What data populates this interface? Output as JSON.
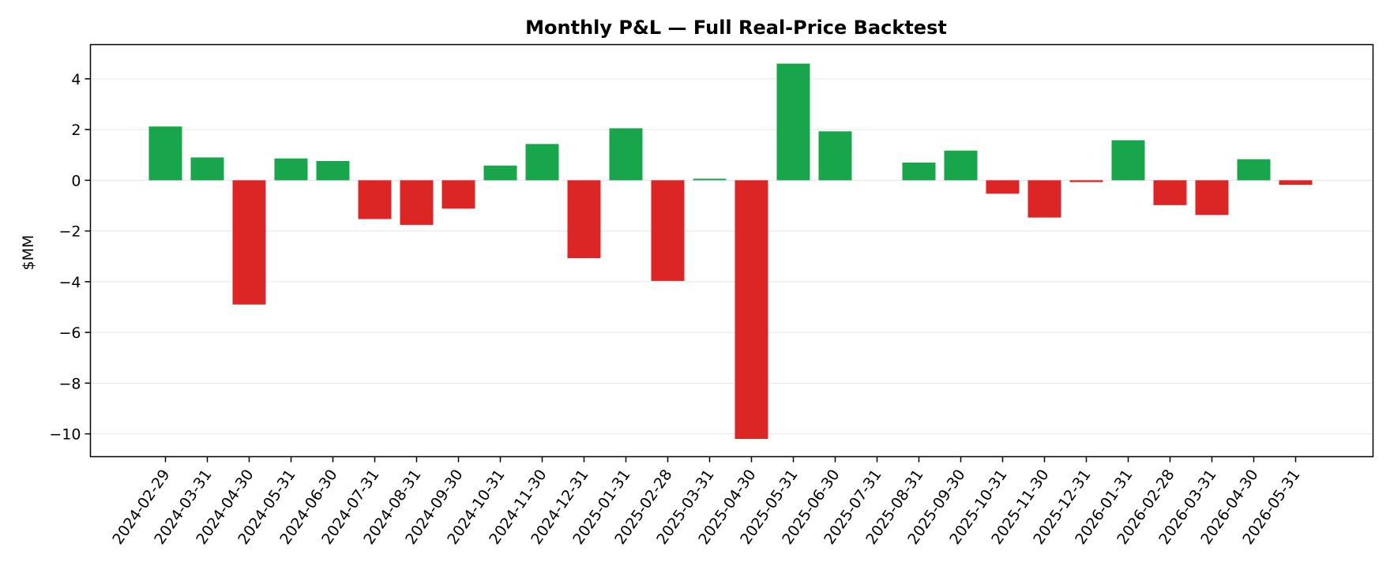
{
  "chart_data": {
    "type": "bar",
    "title": "Monthly P&L — Full Real-Price Backtest",
    "xlabel": "",
    "ylabel": "$MM",
    "ylim": [
      -10.9,
      5.35
    ],
    "yticks": [
      4,
      2,
      0,
      -2,
      -4,
      -6,
      -8,
      -10
    ],
    "ytick_labels": [
      "4",
      "2",
      "0",
      "−2",
      "−4",
      "−6",
      "−8",
      "−10"
    ],
    "grid": "horizontal",
    "legend": "none",
    "colors": {
      "positive": "#18a54b",
      "negative": "#dc2626"
    },
    "categories": [
      "2024-02-29",
      "2024-03-31",
      "2024-04-30",
      "2024-05-31",
      "2024-06-30",
      "2024-07-31",
      "2024-08-31",
      "2024-09-30",
      "2024-10-31",
      "2024-11-30",
      "2024-12-31",
      "2025-01-31",
      "2025-02-28",
      "2025-03-31",
      "2025-04-30",
      "2025-05-31",
      "2025-06-30",
      "2025-07-31",
      "2025-08-31",
      "2025-09-30",
      "2025-10-31",
      "2025-11-30",
      "2025-12-31",
      "2026-01-31",
      "2026-02-28",
      "2026-03-31",
      "2026-04-30",
      "2026-05-31"
    ],
    "values": [
      2.12,
      0.9,
      -4.9,
      0.86,
      0.76,
      -1.53,
      -1.76,
      -1.12,
      0.58,
      1.43,
      -3.07,
      2.05,
      -3.97,
      0.06,
      -10.2,
      4.6,
      1.93,
      0.0,
      0.7,
      1.17,
      -0.53,
      -1.47,
      -0.07,
      1.58,
      -0.98,
      -1.37,
      0.83,
      -0.18
    ]
  }
}
